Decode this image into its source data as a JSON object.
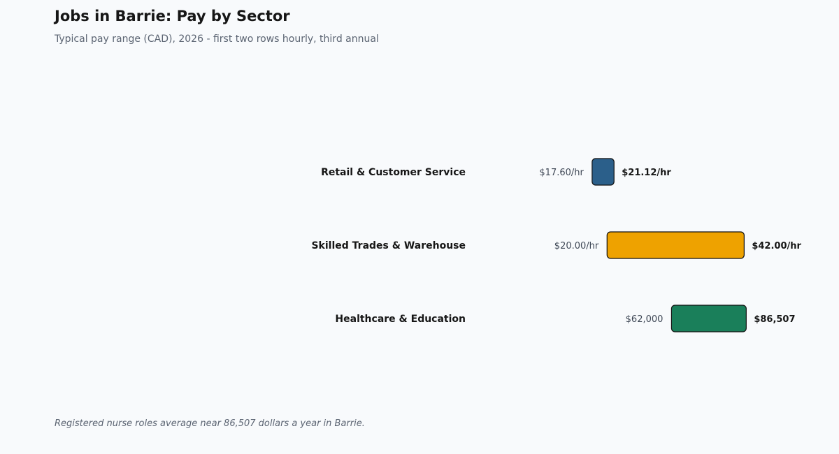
{
  "title": "Jobs in Barrie: Pay by Sector",
  "subtitle": "Typical pay range (CAD), 2026 - first two rows hourly, third annual",
  "footnote": "Registered nurse roles average near 86,507 dollars a year in Barrie.",
  "chart_data": {
    "type": "bar",
    "orientation": "horizontal-range",
    "categories": [
      "Retail & Customer Service",
      "Skilled Trades & Warehouse",
      "Healthcare & Education"
    ],
    "series": [
      {
        "values": [
          {
            "low": 17.6,
            "high": 21.12,
            "low_label": "$17.60/hr",
            "high_label": "$21.12/hr",
            "unit": "hourly",
            "color": "#2b5f8a"
          },
          {
            "low": 20.0,
            "high": 42.0,
            "low_label": "$20.00/hr",
            "high_label": "$42.00/hr",
            "unit": "hourly",
            "color": "#eea200"
          },
          {
            "low": 62000,
            "high": 86507,
            "low_label": "$62,000",
            "high_label": "$86,507",
            "unit": "annual",
            "color": "#1a7f5a"
          }
        ]
      }
    ],
    "hourly_axis_range": [
      0,
      46
    ],
    "annual_axis_range": [
      0,
      94000
    ],
    "grid": false,
    "legend": "none"
  }
}
